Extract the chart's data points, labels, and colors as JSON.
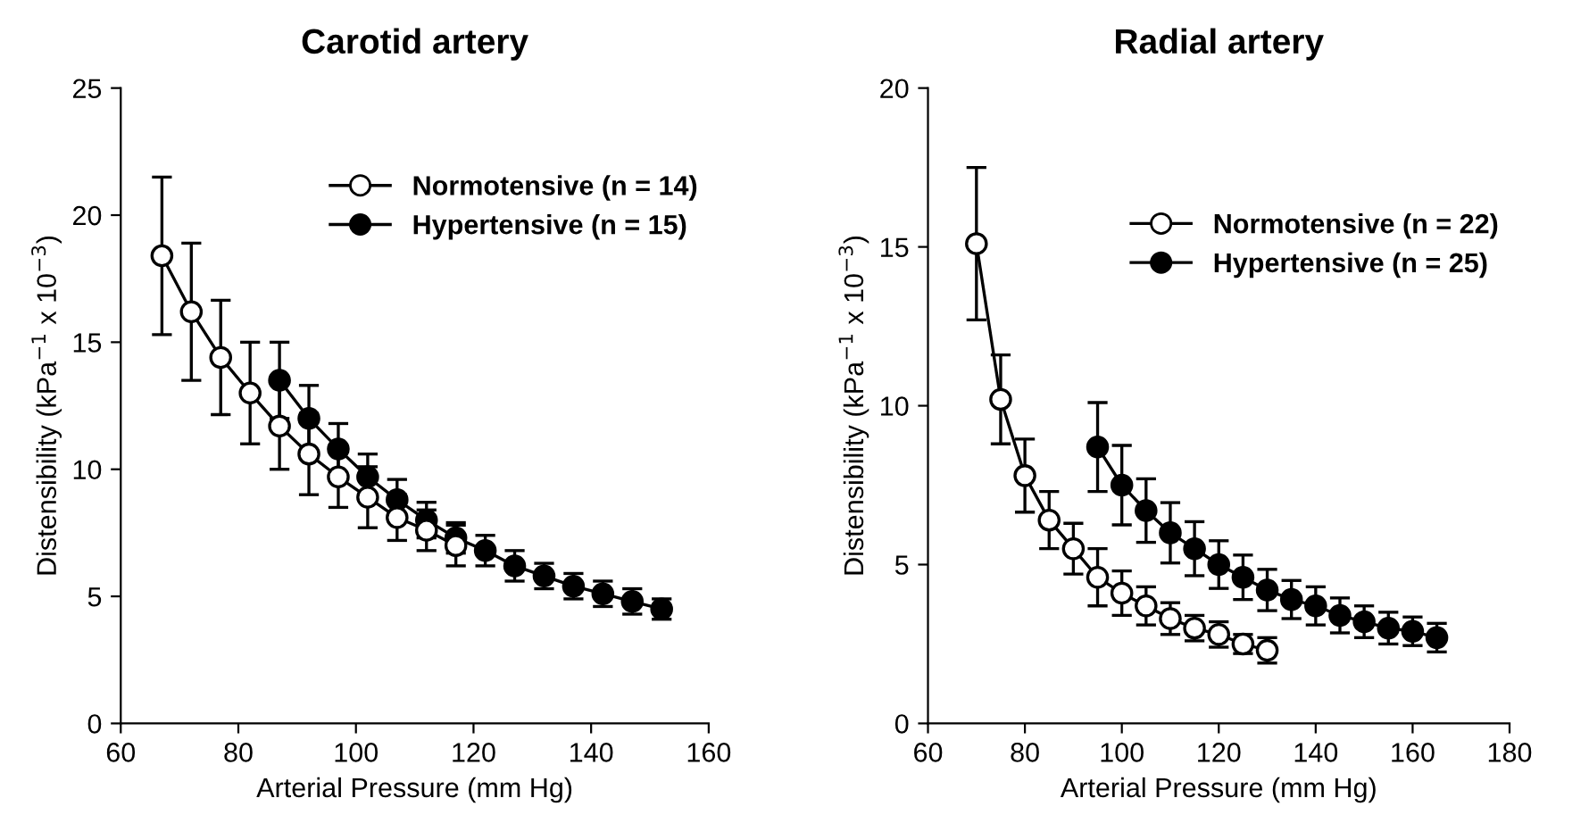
{
  "chart_data": [
    {
      "type": "line",
      "title": "Carotid artery",
      "xlabel": "Arterial Pressure (mm Hg)",
      "ylabel": "Distensibility (kPa$^{−1}$ x 10$^{−3}$)",
      "xlim": [
        60,
        160
      ],
      "xticks": [
        60,
        80,
        100,
        120,
        140,
        160
      ],
      "ylim": [
        0,
        25
      ],
      "yticks": [
        0,
        5,
        10,
        15,
        20,
        25
      ],
      "grid": false,
      "legend": "top right",
      "marker": "circle",
      "line_style": "solid",
      "series": [
        {
          "name": "Normotensive (n = 14)",
          "color": "#ffffff",
          "x": [
            67,
            72,
            77,
            82,
            87,
            92,
            97,
            102,
            107,
            112,
            117
          ],
          "values": [
            18.4,
            16.2,
            14.4,
            13.0,
            11.7,
            10.6,
            9.7,
            8.9,
            8.1,
            7.6,
            7.0
          ],
          "errors": [
            3.1,
            2.7,
            2.25,
            2.0,
            1.7,
            1.6,
            1.2,
            1.2,
            0.9,
            0.8,
            0.8
          ]
        },
        {
          "name": "Hypertensive (n = 15)",
          "color": "#000000",
          "x": [
            87,
            92,
            97,
            102,
            107,
            112,
            117,
            122,
            127,
            132,
            137,
            142,
            147,
            152
          ],
          "values": [
            13.5,
            12.0,
            10.8,
            9.7,
            8.8,
            8.0,
            7.3,
            6.8,
            6.2,
            5.8,
            5.4,
            5.1,
            4.8,
            4.5
          ],
          "errors": [
            1.5,
            1.3,
            1.0,
            0.9,
            0.8,
            0.7,
            0.6,
            0.6,
            0.6,
            0.5,
            0.5,
            0.5,
            0.5,
            0.4
          ]
        }
      ]
    },
    {
      "type": "line",
      "title": "Radial artery",
      "xlabel": "Arterial Pressure (mm Hg)",
      "ylabel": "Distensibility (kPa$^{−1}$ x 10$^{−3}$)",
      "xlim": [
        60,
        180
      ],
      "xticks": [
        60,
        80,
        100,
        120,
        140,
        160,
        180
      ],
      "ylim": [
        0,
        20
      ],
      "yticks": [
        0,
        5,
        10,
        15,
        20
      ],
      "grid": false,
      "legend": "top right",
      "marker": "circle",
      "line_style": "solid",
      "series": [
        {
          "name": "Normotensive (n = 22)",
          "color": "#ffffff",
          "x": [
            70,
            75,
            80,
            85,
            90,
            95,
            100,
            105,
            110,
            115,
            120,
            125,
            130
          ],
          "values": [
            15.1,
            10.2,
            7.8,
            6.4,
            5.5,
            4.6,
            4.1,
            3.7,
            3.3,
            3.0,
            2.8,
            2.5,
            2.3
          ],
          "errors": [
            2.4,
            1.4,
            1.15,
            0.9,
            0.8,
            0.9,
            0.7,
            0.6,
            0.5,
            0.4,
            0.4,
            0.3,
            0.4
          ]
        },
        {
          "name": "Hypertensive (n = 25)",
          "color": "#000000",
          "x": [
            95,
            100,
            105,
            110,
            115,
            120,
            125,
            130,
            135,
            140,
            145,
            150,
            155,
            160,
            165
          ],
          "values": [
            8.7,
            7.5,
            6.7,
            6.0,
            5.5,
            5.0,
            4.6,
            4.2,
            3.9,
            3.7,
            3.4,
            3.2,
            3.0,
            2.9,
            2.7
          ],
          "errors": [
            1.4,
            1.25,
            1.0,
            0.95,
            0.85,
            0.75,
            0.7,
            0.65,
            0.6,
            0.6,
            0.55,
            0.5,
            0.5,
            0.45,
            0.45
          ]
        }
      ]
    }
  ]
}
